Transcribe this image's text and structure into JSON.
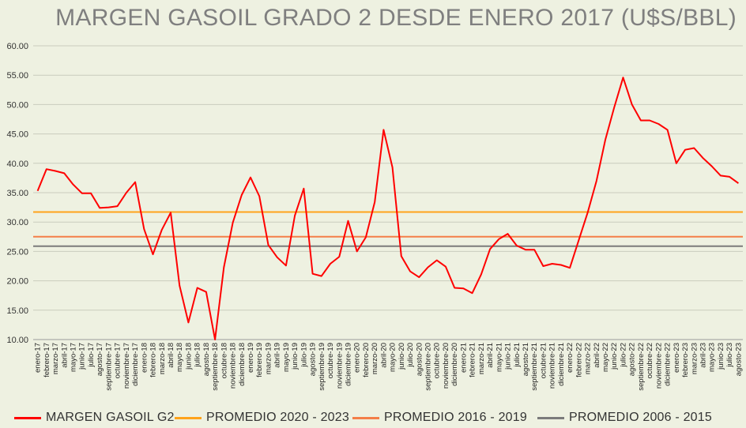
{
  "chart_data": {
    "type": "line",
    "title": "MARGEN GASOIL GRADO 2 DESDE ENERO 2017 (U$S/BBL)",
    "ylim": [
      10,
      60
    ],
    "y_ticks": [
      "10.00",
      "15.00",
      "20.00",
      "25.00",
      "30.00",
      "35.00",
      "40.00",
      "45.00",
      "50.00",
      "55.00",
      "60.00"
    ],
    "grid": "horizontal",
    "legend_position": "bottom",
    "categories": [
      "enero-17",
      "febrero-17",
      "marzo-17",
      "abril-17",
      "mayo-17",
      "junio-17",
      "julio-17",
      "agosto-17",
      "septiembre-17",
      "octubre-17",
      "noviembre-17",
      "diciembre-17",
      "enero-18",
      "febrero-18",
      "marzo-18",
      "abril-18",
      "mayo-18",
      "junio-18",
      "julio-18",
      "agosto-18",
      "septiembre-18",
      "octubre-18",
      "noviembre-18",
      "diciembre-18",
      "enero-19",
      "febrero-19",
      "marzo-19",
      "abril-19",
      "mayo-19",
      "junio-19",
      "julio-19",
      "agosto-19",
      "septiembre-19",
      "octubre-19",
      "noviembre-19",
      "diciembre-19",
      "enero-20",
      "febrero-20",
      "marzo-20",
      "abril-20",
      "mayo-20",
      "junio-20",
      "julio-20",
      "agosto-20",
      "septiembre-20",
      "octubre-20",
      "noviembre-20",
      "diciembre-20",
      "enero-21",
      "febrero-21",
      "marzo-21",
      "abril-21",
      "mayo-21",
      "junio-21",
      "julio-21",
      "agosto-21",
      "septiembre-21",
      "octubre-21",
      "noviembre-21",
      "diciembre-21",
      "enero-22",
      "febrero-22",
      "marzo-22",
      "abril-22",
      "mayo-22",
      "junio-22",
      "julio-22",
      "agosto-22",
      "septiembre-22",
      "octubre-22",
      "noviembre-22",
      "diciembre-22",
      "enero-23",
      "febrero-23",
      "marzo-23",
      "abril-23",
      "mayo-23",
      "junio-23",
      "julio-23",
      "agosto-23"
    ],
    "series": [
      {
        "name": "MARGEN GASOIL G2",
        "color": "#ff0000",
        "values": [
          35.3,
          39.0,
          38.7,
          38.3,
          36.4,
          34.9,
          34.9,
          32.4,
          32.5,
          32.7,
          35.0,
          36.8,
          28.8,
          24.5,
          28.7,
          31.6,
          19.2,
          12.9,
          18.8,
          18.1,
          10.0,
          22.3,
          29.9,
          34.6,
          37.6,
          34.4,
          26.1,
          24.0,
          22.6,
          31.1,
          35.7,
          21.2,
          20.8,
          22.9,
          24.1,
          30.2,
          25.0,
          27.4,
          33.4,
          45.7,
          39.3,
          24.2,
          21.6,
          20.6,
          22.3,
          23.5,
          22.4,
          18.8,
          18.7,
          17.9,
          21.1,
          25.4,
          27.1,
          28.0,
          26.0,
          25.3,
          25.3,
          22.5,
          22.9,
          22.7,
          22.2,
          26.9,
          31.6,
          37.0,
          44.0,
          49.5,
          54.6,
          50.0,
          47.3,
          47.3,
          46.7,
          45.7,
          40.0,
          42.3,
          42.6,
          40.9,
          39.5,
          37.9,
          37.7,
          36.6
        ]
      },
      {
        "name": "PROMEDIO 2020 - 2023",
        "color": "#ffa31a",
        "constant": 31.7
      },
      {
        "name": "PROMEDIO 2016 - 2019",
        "color": "#f47f48",
        "constant": 27.5
      },
      {
        "name": "PROMEDIO 2006 - 2015",
        "color": "#7b7b7b",
        "constant": 25.9
      }
    ]
  }
}
